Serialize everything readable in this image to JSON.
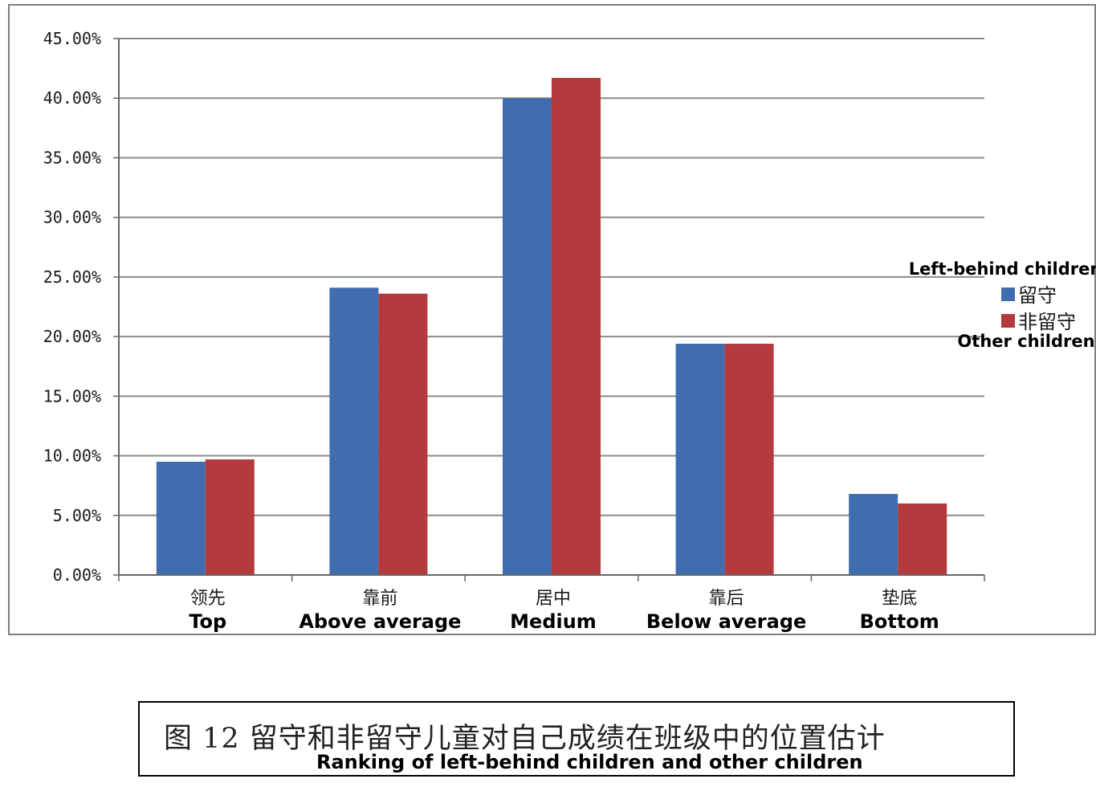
{
  "chart_data": {
    "type": "bar",
    "categories": [
      "领先",
      "靠前",
      "居中",
      "靠后",
      "垫底"
    ],
    "categories_en": [
      "Top",
      "Above average",
      "Medium",
      "Below average",
      "Bottom"
    ],
    "series": [
      {
        "name": "留守",
        "name_en": "Left-behind children",
        "color": "#3f6db0",
        "values": [
          9.5,
          24.1,
          40.0,
          19.4,
          6.8
        ]
      },
      {
        "name": "非留守",
        "name_en": "Other children",
        "color": "#b33a3d",
        "values": [
          9.7,
          23.6,
          41.7,
          19.4,
          6.0
        ]
      }
    ],
    "ylim": [
      0,
      45
    ],
    "yticks": [
      "0.00%",
      "5.00%",
      "10.00%",
      "15.00%",
      "20.00%",
      "25.00%",
      "30.00%",
      "35.00%",
      "40.00%",
      "45.00%"
    ],
    "grid": true,
    "legend_position": "right"
  },
  "caption": {
    "cn": "图 12  留守和非留守儿童对自己成绩在班级中的位置估计",
    "en": "Ranking of left-behind children and other children"
  }
}
